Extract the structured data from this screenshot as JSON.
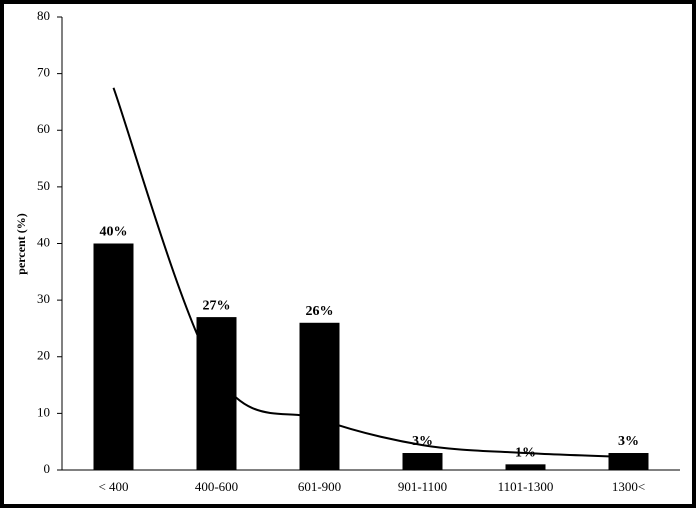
{
  "chart_data": {
    "type": "bar",
    "y_label": "percent (%)",
    "categories": [
      "< 400",
      "400-600",
      "601-900",
      "901-1100",
      "1101-1300",
      "1300<"
    ],
    "values": [
      40,
      27,
      26,
      3,
      1,
      3
    ],
    "value_labels": [
      "40%",
      "27%",
      "26%",
      "3%",
      "1%",
      "3%"
    ],
    "color": "#000000",
    "trend": {
      "values": [
        67.5,
        17,
        9,
        4.4,
        3,
        2.3
      ],
      "color": "#000000"
    },
    "ylim": [
      0,
      80
    ],
    "yticks": [
      0,
      10,
      20,
      30,
      40,
      50,
      60,
      70,
      80
    ],
    "grid": false
  }
}
